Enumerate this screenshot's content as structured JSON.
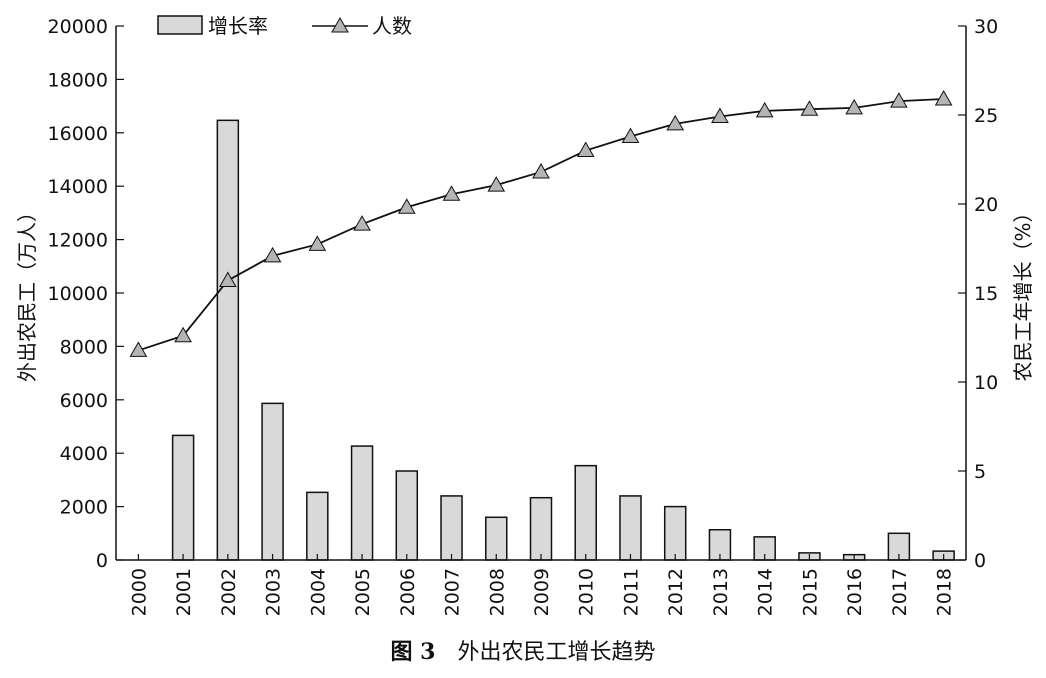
{
  "caption": {
    "figure": "图 3",
    "title": "外出农民工增长趋势"
  },
  "chart_data": {
    "type": "bar+line",
    "categories": [
      "2000",
      "2001",
      "2002",
      "2003",
      "2004",
      "2005",
      "2006",
      "2007",
      "2008",
      "2009",
      "2010",
      "2011",
      "2012",
      "2013",
      "2014",
      "2015",
      "2016",
      "2017",
      "2018"
    ],
    "series": [
      {
        "name": "增长率",
        "type": "bar",
        "axis": "right",
        "values": [
          0,
          7.0,
          24.7,
          8.8,
          3.8,
          6.4,
          5.0,
          3.6,
          2.4,
          3.5,
          5.3,
          3.6,
          3.0,
          1.7,
          1.3,
          0.4,
          0.3,
          1.5,
          0.5
        ]
      },
      {
        "name": "人数",
        "type": "line",
        "marker": "triangle",
        "axis": "left",
        "values": [
          7849,
          8399,
          10470,
          11390,
          11823,
          12578,
          13212,
          13697,
          14041,
          14533,
          15335,
          15863,
          16336,
          16610,
          16821,
          16884,
          16934,
          17185,
          17266
        ]
      }
    ],
    "ylabel": "外出农民工（万人）",
    "y2label": "农民工年增长（%）",
    "ylim": [
      0,
      20000
    ],
    "yticks": [
      "0",
      "2000",
      "4000",
      "6000",
      "8000",
      "10000",
      "12000",
      "14000",
      "16000",
      "18000",
      "20000"
    ],
    "y2lim": [
      0,
      30
    ],
    "y2ticks": [
      "0",
      "5",
      "10",
      "15",
      "20",
      "25",
      "30"
    ],
    "legend_position": "top-left",
    "colors": {
      "bar_fill": "#d9d9d9",
      "bar_stroke": "#111111",
      "line": "#111111",
      "marker_fill": "#b5b5b5"
    }
  }
}
